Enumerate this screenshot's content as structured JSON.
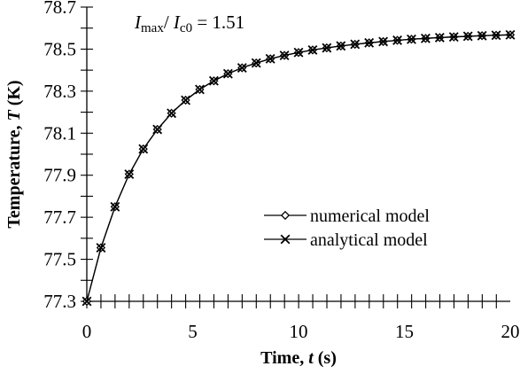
{
  "chart_data": {
    "type": "line",
    "xlabel": "Time, t (s)",
    "xlabel_parts": {
      "main": "Time, ",
      "var": "t",
      "unit": " (s)"
    },
    "ylabel": "Temperature, T (K)",
    "ylabel_parts": {
      "main": "Temperature, ",
      "var": "T",
      "unit": " (K)"
    },
    "xlim": [
      0,
      20
    ],
    "ylim": [
      77.3,
      78.7
    ],
    "x_ticks": [
      "0",
      "5",
      "10",
      "15",
      "20"
    ],
    "x_tick_values": [
      0,
      5,
      10,
      15,
      20
    ],
    "x_minor_step": 0.667,
    "y_ticks": [
      "77.3",
      "77.5",
      "77.7",
      "77.9",
      "78.1",
      "78.3",
      "78.5",
      "78.7"
    ],
    "y_tick_values": [
      77.3,
      77.5,
      77.7,
      77.9,
      78.1,
      78.3,
      78.5,
      78.7
    ],
    "y_minor_step": 0.1,
    "grid": false,
    "legend_position": "center-right",
    "annotation": {
      "I1": "I",
      "sub1": "max",
      "slash": "/ ",
      "I2": "I",
      "sub2": "c0",
      "value": " = 1.51"
    },
    "series": [
      {
        "name": "numerical model",
        "marker": "diamond",
        "x": [
          0.0,
          0.667,
          1.333,
          2.0,
          2.667,
          3.333,
          4.0,
          4.667,
          5.333,
          6.0,
          6.667,
          7.333,
          8.0,
          8.667,
          9.333,
          10.0,
          10.667,
          11.333,
          12.0,
          12.667,
          13.333,
          14.0,
          14.667,
          15.333,
          16.0,
          16.667,
          17.333,
          18.0,
          18.667,
          19.333,
          20.0
        ],
        "y": [
          77.3,
          77.555,
          77.75,
          77.905,
          78.025,
          78.118,
          78.195,
          78.257,
          78.308,
          78.349,
          78.383,
          78.411,
          78.434,
          78.454,
          78.47,
          78.484,
          78.496,
          78.506,
          78.515,
          78.523,
          78.53,
          78.536,
          78.542,
          78.547,
          78.551,
          78.555,
          78.558,
          78.561,
          78.564,
          78.566,
          78.568
        ]
      },
      {
        "name": "analytical model",
        "marker": "x",
        "x": [
          0.0,
          0.667,
          1.333,
          2.0,
          2.667,
          3.333,
          4.0,
          4.667,
          5.333,
          6.0,
          6.667,
          7.333,
          8.0,
          8.667,
          9.333,
          10.0,
          10.667,
          11.333,
          12.0,
          12.667,
          13.333,
          14.0,
          14.667,
          15.333,
          16.0,
          16.667,
          17.333,
          18.0,
          18.667,
          19.333,
          20.0
        ],
        "y": [
          77.3,
          77.555,
          77.75,
          77.905,
          78.025,
          78.118,
          78.195,
          78.257,
          78.308,
          78.349,
          78.383,
          78.411,
          78.434,
          78.454,
          78.47,
          78.484,
          78.496,
          78.506,
          78.515,
          78.523,
          78.53,
          78.536,
          78.542,
          78.547,
          78.551,
          78.555,
          78.558,
          78.561,
          78.564,
          78.566,
          78.568
        ]
      }
    ]
  }
}
